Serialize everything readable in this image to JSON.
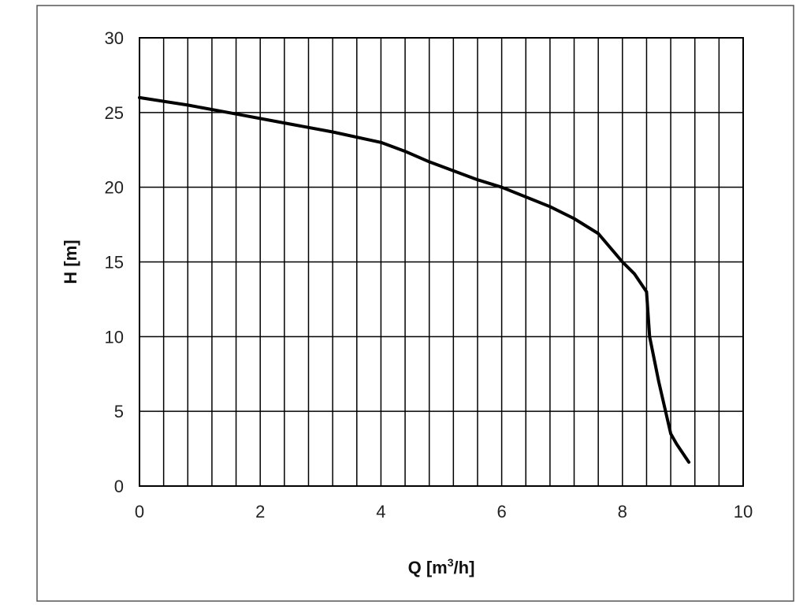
{
  "chart_data": {
    "type": "line",
    "title": "",
    "xlabel": "Q [m3/h]",
    "xlabel_parts": {
      "main": "Q [m",
      "sup": "3",
      "tail": "/h]"
    },
    "ylabel": "H [m]",
    "xlim": [
      0,
      10
    ],
    "ylim": [
      0,
      30
    ],
    "x_ticks": [
      0,
      2,
      4,
      6,
      8,
      10
    ],
    "y_ticks": [
      0,
      5,
      10,
      15,
      20,
      25,
      30
    ],
    "x_grid_step": 0.4,
    "y_grid_step": 5,
    "grid": true,
    "legend": "none",
    "series": [
      {
        "color": "#000000",
        "x": [
          0,
          0.8,
          1.6,
          2.4,
          3.2,
          4.0,
          4.4,
          4.8,
          5.6,
          6.0,
          6.8,
          7.2,
          7.6,
          8.0,
          8.2,
          8.4,
          8.45,
          8.6,
          8.8,
          8.9,
          9.1
        ],
        "y": [
          26.0,
          25.5,
          24.9,
          24.3,
          23.7,
          23.0,
          22.4,
          21.7,
          20.5,
          20.0,
          18.7,
          17.9,
          16.9,
          15.0,
          14.2,
          13.0,
          10.0,
          7.0,
          3.5,
          2.8,
          1.6
        ]
      }
    ],
    "colors": {
      "line": "#000000",
      "grid": "#000000",
      "frame": "#555555"
    }
  }
}
